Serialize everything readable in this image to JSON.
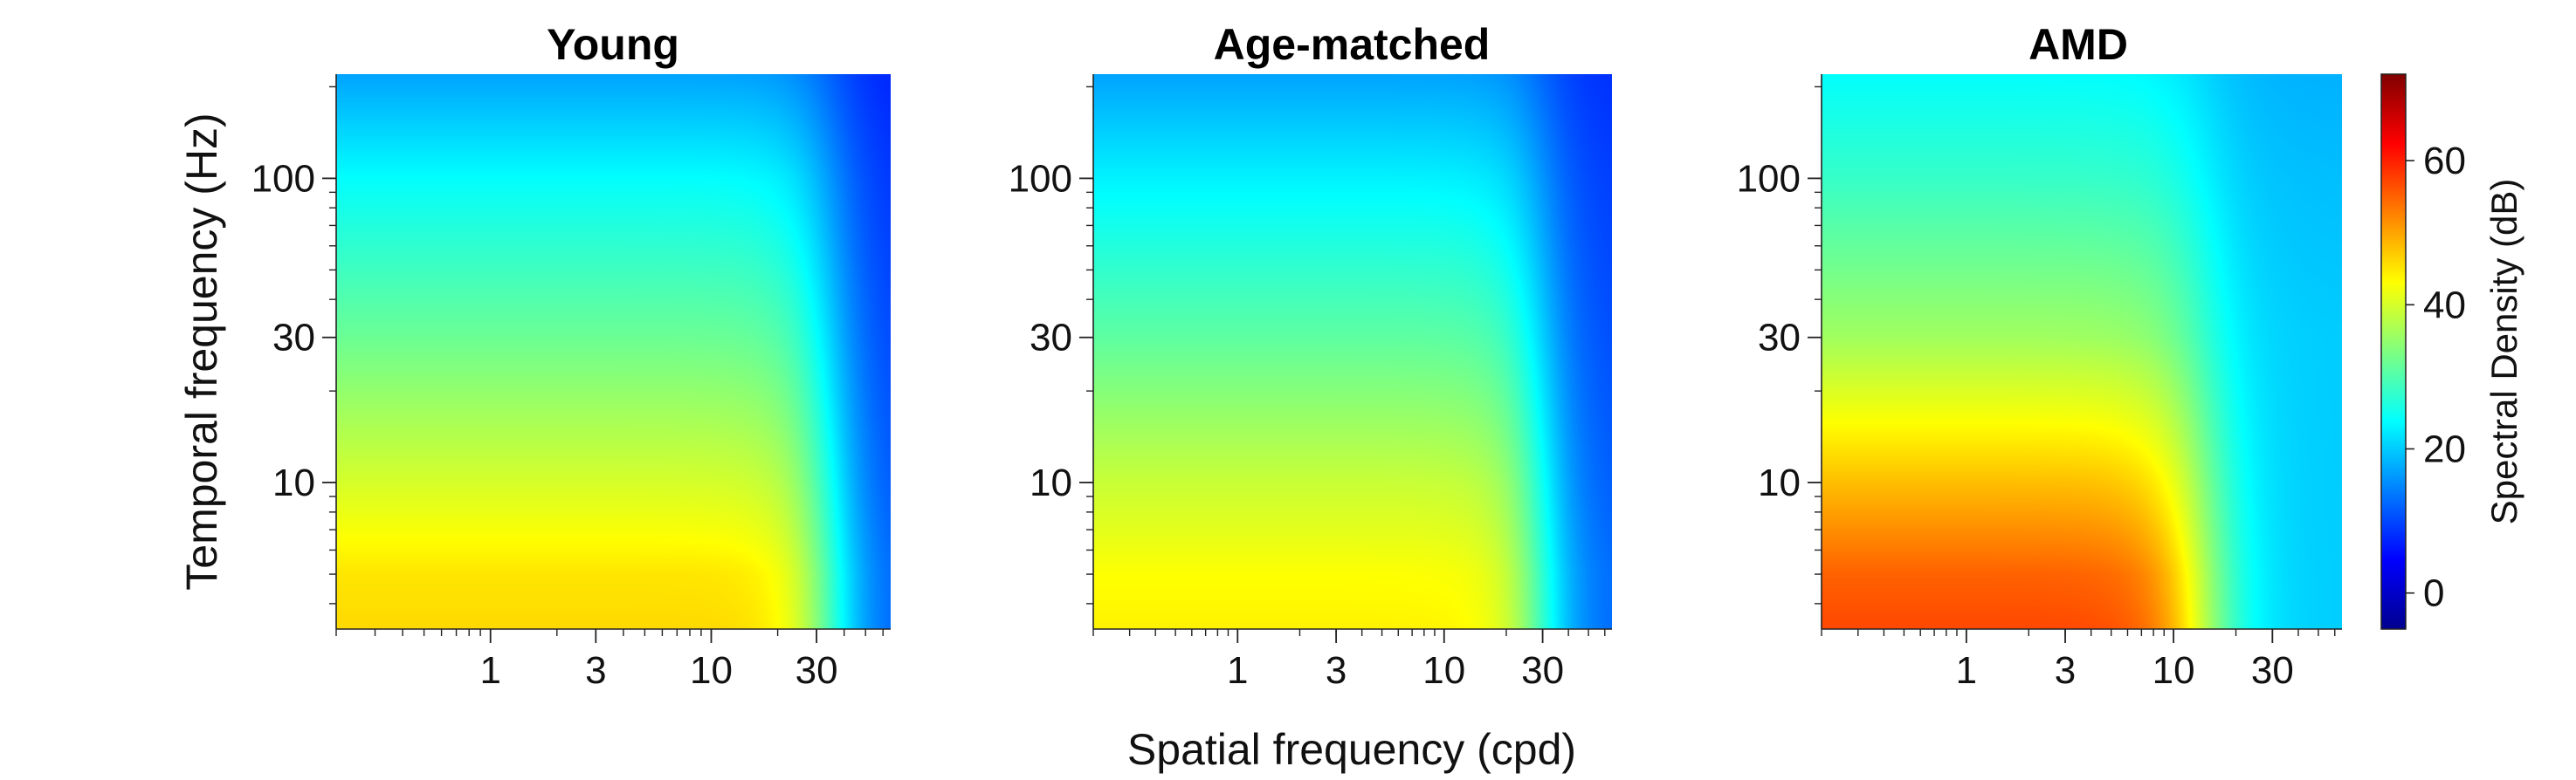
{
  "chart_data": {
    "type": "heatmap",
    "shared": {
      "xlabel": "Spatial frequency (cpd)",
      "ylabel": "Temporal frequency (Hz)",
      "x_scale": "log",
      "y_scale": "log",
      "xlim": [
        0.2,
        65
      ],
      "ylim": [
        3.3,
        220
      ],
      "x_ticks": [
        1,
        3,
        10,
        30
      ],
      "x_tick_labels": [
        "1",
        "3",
        "10",
        "30"
      ],
      "y_ticks": [
        10,
        30,
        100
      ],
      "y_tick_labels": [
        "10",
        "30",
        "100"
      ],
      "colormap": "jet",
      "colorbar": {
        "label": "Spectral Density (dB)",
        "range": [
          -5,
          72
        ],
        "ticks": [
          0,
          20,
          40,
          60
        ],
        "tick_labels": [
          "0",
          "20",
          "40",
          "60"
        ]
      }
    },
    "panels": [
      {
        "title": "Young",
        "density_db": {
          "y_tf_hz": [
            3.3,
            5,
            10,
            30,
            100,
            220
          ],
          "low_sf_values": [
            46,
            45,
            40,
            32,
            24,
            17
          ],
          "sf_rolloff_cpd": 35,
          "sf_rolloff_steepness": 2.2,
          "high_sf_floor": [
            11,
            11,
            10,
            9,
            8,
            7
          ]
        }
      },
      {
        "title": "Age-matched",
        "density_db": {
          "y_tf_hz": [
            3.3,
            5,
            10,
            30,
            100,
            220
          ],
          "low_sf_values": [
            44,
            43,
            39,
            31,
            23,
            17
          ],
          "sf_rolloff_cpd": 30,
          "sf_rolloff_steepness": 2.2,
          "high_sf_floor": [
            12,
            12,
            11,
            10,
            9,
            8
          ]
        }
      },
      {
        "title": "AMD",
        "density_db": {
          "y_tf_hz": [
            3.3,
            5,
            10,
            30,
            100,
            220
          ],
          "low_sf_values": [
            57,
            55,
            48,
            36,
            28,
            24
          ],
          "sf_rolloff_cpd": 14,
          "sf_rolloff_steepness": 1.8,
          "high_sf_floor": [
            20,
            20,
            20,
            20,
            19,
            18
          ]
        }
      }
    ]
  }
}
